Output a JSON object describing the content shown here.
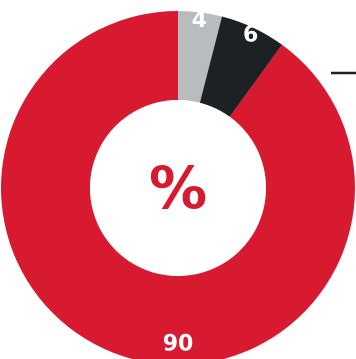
{
  "chart_data": {
    "type": "pie",
    "donut": true,
    "center_label": "%",
    "slices": [
      {
        "label": "4",
        "value": 4,
        "color": "#b9bcbf",
        "label_color": "#ffffff"
      },
      {
        "label": "6",
        "value": 6,
        "color": "#1c2124",
        "label_color": "#ffffff"
      },
      {
        "label": "90",
        "value": 90,
        "color": "#d71a2f",
        "label_color": "#ffffff"
      }
    ],
    "center_label_color": "#d71a2f",
    "start_angle_deg": 0
  }
}
